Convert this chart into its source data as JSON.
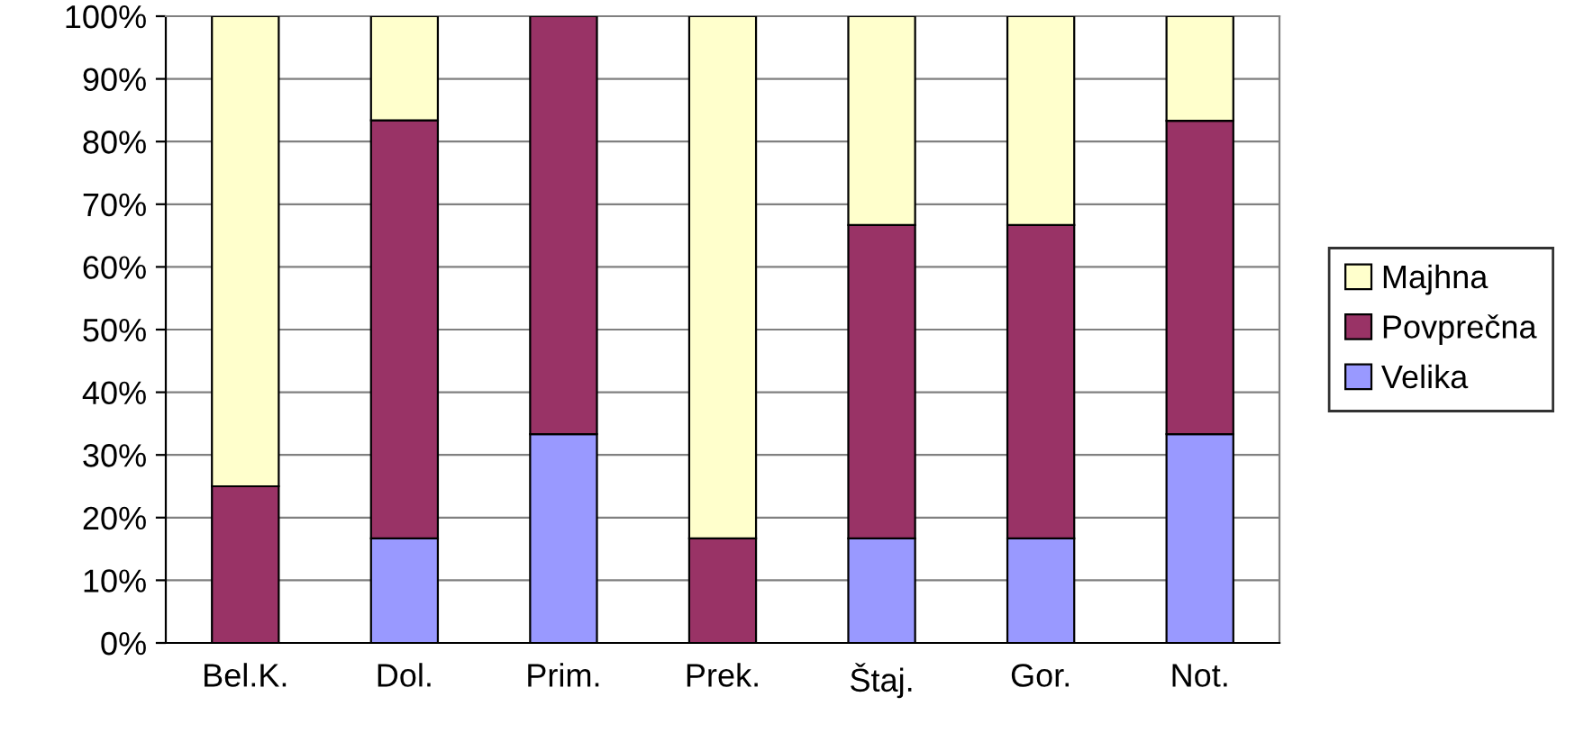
{
  "chart_data": {
    "type": "bar",
    "stacked": true,
    "categories": [
      "Bel.K.",
      "Dol.",
      "Prim.",
      "Prek.",
      "Štaj.",
      "Gor.",
      "Not."
    ],
    "series": [
      {
        "name": "Velika",
        "color": "#9999ff",
        "values": [
          0,
          16.7,
          33.3,
          0,
          16.7,
          16.7,
          33.3
        ]
      },
      {
        "name": "Povprečna",
        "color": "#993366",
        "values": [
          25,
          66.7,
          66.7,
          16.7,
          50,
          50,
          50
        ]
      },
      {
        "name": "Majhna",
        "color": "#ffffcc",
        "values": [
          75,
          16.6,
          0,
          83.3,
          33.3,
          33.3,
          16.7
        ]
      }
    ],
    "ylim": [
      0,
      100
    ],
    "yticks": [
      {
        "value": 0,
        "label": "0%"
      },
      {
        "value": 10,
        "label": "10%"
      },
      {
        "value": 20,
        "label": "20%"
      },
      {
        "value": 30,
        "label": "30%"
      },
      {
        "value": 40,
        "label": "40%"
      },
      {
        "value": 50,
        "label": "50%"
      },
      {
        "value": 60,
        "label": "60%"
      },
      {
        "value": 70,
        "label": "70%"
      },
      {
        "value": 80,
        "label": "80%"
      },
      {
        "value": 90,
        "label": "90%"
      },
      {
        "value": 100,
        "label": "100%"
      }
    ],
    "grid": "y",
    "legend": "right"
  }
}
